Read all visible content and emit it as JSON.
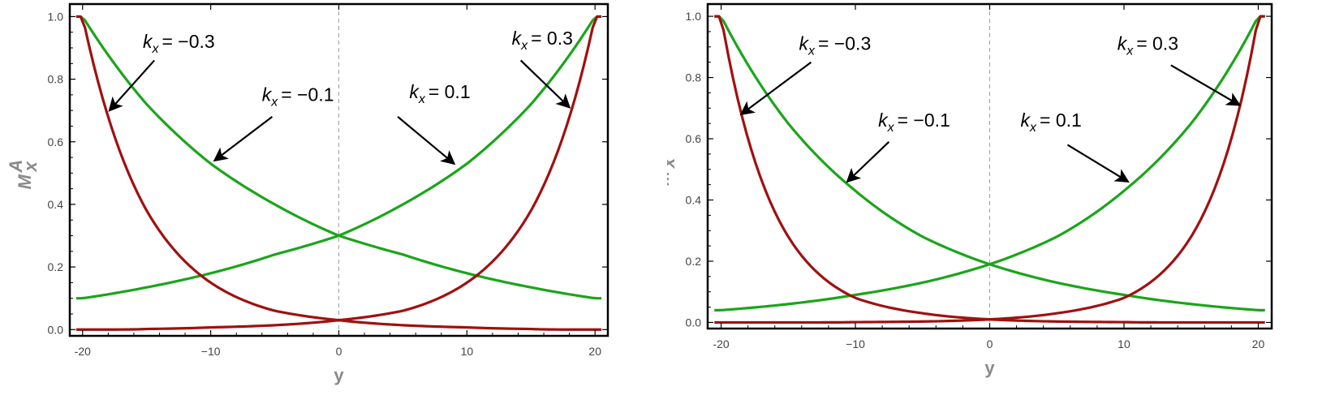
{
  "chart_data": [
    {
      "type": "line",
      "xlabel": "y",
      "ylabel": "M",
      "ylabel_sub": "x",
      "ylabel_sup": "A",
      "xlim": [
        -21,
        21
      ],
      "ylim": [
        -0.02,
        1.04
      ],
      "xticks": [
        -20,
        -10,
        0,
        10,
        20
      ],
      "xtick_labels": [
        "-20",
        "−10",
        "0",
        "10",
        "20"
      ],
      "yticks": [
        0.0,
        0.2,
        0.4,
        0.6,
        0.8,
        1.0
      ],
      "ytick_labels": [
        "0.0",
        "0.2",
        "0.4",
        "0.6",
        "0.8",
        "1.0"
      ],
      "vline_x": 0,
      "grid": false,
      "x_range": [
        -20.5,
        20.5
      ],
      "series": [
        {
          "kx": 0.1,
          "color": "#1aa51a",
          "x": [
            -20,
            -15,
            -10,
            -5,
            0,
            5,
            10,
            15,
            20
          ],
          "y": [
            0.1,
            0.135,
            0.18,
            0.24,
            0.3,
            0.4,
            0.53,
            0.72,
            1.0
          ]
        },
        {
          "kx": -0.1,
          "color": "#1aa51a",
          "x": [
            -20,
            -15,
            -10,
            -5,
            0,
            5,
            10,
            15,
            20
          ],
          "y": [
            1.0,
            0.72,
            0.53,
            0.4,
            0.3,
            0.24,
            0.18,
            0.135,
            0.1
          ]
        },
        {
          "kx": 0.3,
          "color": "#a01010",
          "x": [
            -20,
            -15,
            -10,
            -5,
            0,
            5,
            10,
            15,
            20
          ],
          "y": [
            0.0,
            0.002,
            0.007,
            0.014,
            0.03,
            0.06,
            0.15,
            0.38,
            1.0
          ]
        },
        {
          "kx": -0.3,
          "color": "#a01010",
          "x": [
            -20,
            -15,
            -10,
            -5,
            0,
            5,
            10,
            15,
            20
          ],
          "y": [
            1.0,
            0.38,
            0.15,
            0.06,
            0.03,
            0.014,
            0.007,
            0.002,
            0.0
          ]
        }
      ],
      "annotations": [
        {
          "value": "= −0.3",
          "text_pos": [
            -15.3,
            0.9
          ],
          "arrow_from": [
            -14.4,
            0.86
          ],
          "arrow_to": [
            -17.9,
            0.7
          ]
        },
        {
          "value": "= −0.1",
          "text_pos": [
            -6.0,
            0.73
          ],
          "arrow_from": [
            -5.2,
            0.68
          ],
          "arrow_to": [
            -9.7,
            0.54
          ]
        },
        {
          "value": "= 0.1",
          "text_pos": [
            5.5,
            0.74
          ],
          "arrow_from": [
            4.6,
            0.68
          ],
          "arrow_to": [
            9.0,
            0.53
          ]
        },
        {
          "value": "= 0.3",
          "text_pos": [
            13.5,
            0.91
          ],
          "arrow_from": [
            14.2,
            0.86
          ],
          "arrow_to": [
            18.0,
            0.71
          ]
        }
      ]
    },
    {
      "type": "line",
      "xlabel": "y",
      "ylabel": "M",
      "ylabel_sub": "x",
      "ylabel_sup": "A",
      "xlim": [
        -21,
        21
      ],
      "ylim": [
        -0.02,
        1.04
      ],
      "xticks": [
        -20,
        -10,
        0,
        10,
        20
      ],
      "xtick_labels": [
        "-20",
        "−10",
        "0",
        "10",
        "20"
      ],
      "yticks": [
        0.0,
        0.2,
        0.4,
        0.6,
        0.8,
        1.0
      ],
      "ytick_labels": [
        "0.0",
        "0.2",
        "0.4",
        "0.6",
        "0.8",
        "1.0"
      ],
      "vline_x": 0,
      "grid": false,
      "x_range": [
        -20.5,
        20.5
      ],
      "series": [
        {
          "kx": 0.1,
          "color": "#1aa51a",
          "x": [
            -20,
            -15,
            -10,
            -5,
            0,
            5,
            10,
            15,
            20
          ],
          "y": [
            0.04,
            0.06,
            0.09,
            0.13,
            0.19,
            0.28,
            0.43,
            0.65,
            1.0
          ]
        },
        {
          "kx": -0.1,
          "color": "#1aa51a",
          "x": [
            -20,
            -15,
            -10,
            -5,
            0,
            5,
            10,
            15,
            20
          ],
          "y": [
            1.0,
            0.65,
            0.43,
            0.28,
            0.19,
            0.13,
            0.09,
            0.06,
            0.04
          ]
        },
        {
          "kx": 0.3,
          "color": "#a01010",
          "x": [
            -20,
            -15,
            -10,
            -5,
            0,
            5,
            10,
            15,
            20
          ],
          "y": [
            0.0,
            0.0,
            0.001,
            0.003,
            0.01,
            0.03,
            0.08,
            0.28,
            1.0
          ]
        },
        {
          "kx": -0.3,
          "color": "#a01010",
          "x": [
            -20,
            -15,
            -10,
            -5,
            0,
            5,
            10,
            15,
            20
          ],
          "y": [
            1.0,
            0.28,
            0.08,
            0.03,
            0.01,
            0.003,
            0.001,
            0.0,
            0.0
          ]
        }
      ],
      "annotations": [
        {
          "value": "= −0.3",
          "text_pos": [
            -14.2,
            0.89
          ],
          "arrow_from": [
            -13.3,
            0.85
          ],
          "arrow_to": [
            -18.5,
            0.68
          ]
        },
        {
          "value": "= −0.1",
          "text_pos": [
            -8.3,
            0.64
          ],
          "arrow_from": [
            -7.5,
            0.59
          ],
          "arrow_to": [
            -10.6,
            0.46
          ]
        },
        {
          "value": "= 0.1",
          "text_pos": [
            2.3,
            0.64
          ],
          "arrow_from": [
            5.8,
            0.58
          ],
          "arrow_to": [
            10.3,
            0.46
          ]
        },
        {
          "value": "= 0.3",
          "text_pos": [
            9.5,
            0.89
          ],
          "arrow_from": [
            13.5,
            0.84
          ],
          "arrow_to": [
            18.6,
            0.71
          ]
        }
      ]
    }
  ],
  "annotation_symbol": "k",
  "annotation_subscript": "x"
}
